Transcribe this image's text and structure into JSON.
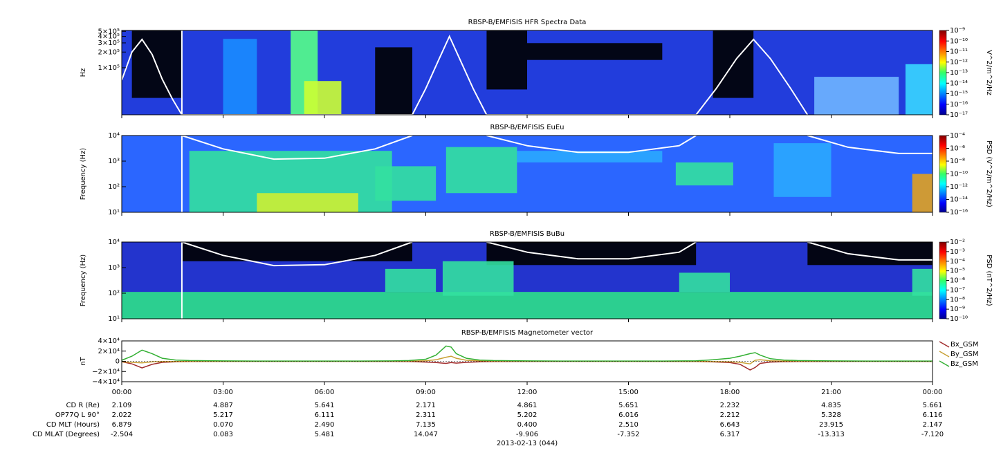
{
  "chart_data": [
    {
      "type": "spectrogram",
      "title": "RBSP-B/EMFISIS  HFR Spectra Data",
      "ylabel": "Hz",
      "ylog": true,
      "ylim": [
        12500,
        520000
      ],
      "yticks": [
        {
          "value": 100000,
          "label": "1×10⁵"
        },
        {
          "value": 200000,
          "label": "2×10⁵"
        },
        {
          "value": 300000,
          "label": "3×10⁵"
        },
        {
          "value": 400000,
          "label": "4×10⁵"
        },
        {
          "value": 500000,
          "label": "5×10⁵"
        }
      ],
      "colorbar": {
        "label": "V^2/m^2/Hz",
        "lim": [
          1e-17,
          1e-09
        ],
        "ticks": [
          {
            "value": 1e-09,
            "label": "10⁻⁹"
          },
          {
            "value": 1e-10,
            "label": "10⁻¹⁰"
          },
          {
            "value": 1e-11,
            "label": "10⁻¹¹"
          },
          {
            "value": 1e-12,
            "label": "10⁻¹²"
          },
          {
            "value": 1e-13,
            "label": "10⁻¹³"
          },
          {
            "value": 1e-14,
            "label": "10⁻¹⁴"
          },
          {
            "value": 1e-15,
            "label": "10⁻¹⁵"
          },
          {
            "value": 1e-16,
            "label": "10⁻¹⁶"
          },
          {
            "value": 1e-17,
            "label": "10⁻¹⁷"
          }
        ]
      },
      "curve": {
        "color": "#ffffff",
        "x": [
          0,
          0.3,
          0.6,
          0.9,
          1.2,
          1.5,
          1.78,
          8.6,
          9,
          9.4,
          9.7,
          10,
          10.4,
          10.8,
          17,
          17.6,
          18.2,
          18.7,
          19.2,
          19.8,
          20.3
        ],
        "values": [
          58000,
          200000,
          350000,
          180000,
          60000,
          25000,
          12500,
          12500,
          40000,
          150000,
          400000,
          150000,
          40000,
          12500,
          12500,
          40000,
          150000,
          350000,
          150000,
          40000,
          12500
        ]
      }
    },
    {
      "type": "spectrogram",
      "title": "RBSP-B/EMFISIS  EuEu",
      "ylabel": "Frequency (Hz)",
      "ylog": true,
      "ylim": [
        10,
        10000
      ],
      "yticks": [
        {
          "value": 10,
          "label": "10¹"
        },
        {
          "value": 100,
          "label": "10²"
        },
        {
          "value": 1000,
          "label": "10³"
        },
        {
          "value": 10000,
          "label": "10⁴"
        }
      ],
      "colorbar": {
        "label": "PSD (V^2/m^2/Hz)",
        "lim": [
          1e-16,
          0.0001
        ],
        "ticks": [
          {
            "value": 0.0001,
            "label": "10⁻⁴"
          },
          {
            "value": 1e-06,
            "label": "10⁻⁶"
          },
          {
            "value": 1e-08,
            "label": "10⁻⁸"
          },
          {
            "value": 1e-10,
            "label": "10⁻¹⁰"
          },
          {
            "value": 1e-12,
            "label": "10⁻¹²"
          },
          {
            "value": 1e-14,
            "label": "10⁻¹⁴"
          },
          {
            "value": 1e-16,
            "label": "10⁻¹⁶"
          }
        ]
      },
      "curve": {
        "color": "#ffffff",
        "x": [
          1.78,
          3,
          4.5,
          6,
          7.5,
          8.6,
          null,
          10.8,
          12,
          13.5,
          15,
          16.5,
          17,
          null,
          20.3,
          21.5,
          23,
          24
        ],
        "values": [
          10000,
          3000,
          1200,
          1300,
          3000,
          10000,
          null,
          10000,
          4000,
          2200,
          2200,
          4000,
          10000,
          null,
          10000,
          3500,
          2000,
          2000
        ]
      }
    },
    {
      "type": "spectrogram",
      "title": "RBSP-B/EMFISIS  BuBu",
      "ylabel": "Frequency (Hz)",
      "ylog": true,
      "ylim": [
        10,
        10000
      ],
      "yticks": [
        {
          "value": 10,
          "label": "10¹"
        },
        {
          "value": 100,
          "label": "10²"
        },
        {
          "value": 1000,
          "label": "10³"
        },
        {
          "value": 10000,
          "label": "10⁴"
        }
      ],
      "colorbar": {
        "label": "PSD (nT^2/Hz)",
        "lim": [
          1e-10,
          0.01
        ],
        "ticks": [
          {
            "value": 0.01,
            "label": "10⁻²"
          },
          {
            "value": 0.001,
            "label": "10⁻³"
          },
          {
            "value": 0.0001,
            "label": "10⁻⁴"
          },
          {
            "value": 1e-05,
            "label": "10⁻⁵"
          },
          {
            "value": 1e-06,
            "label": "10⁻⁶"
          },
          {
            "value": 1e-07,
            "label": "10⁻⁷"
          },
          {
            "value": 1e-08,
            "label": "10⁻⁸"
          },
          {
            "value": 1e-09,
            "label": "10⁻⁹"
          },
          {
            "value": 1e-10,
            "label": "10⁻¹⁰"
          }
        ]
      },
      "curve": {
        "color": "#ffffff",
        "x": [
          1.78,
          3,
          4.5,
          6,
          7.5,
          8.6,
          null,
          10.8,
          12,
          13.5,
          15,
          16.5,
          17,
          null,
          20.3,
          21.5,
          23,
          24
        ],
        "values": [
          10000,
          3000,
          1200,
          1300,
          3000,
          10000,
          null,
          10000,
          4000,
          2200,
          2200,
          4000,
          10000,
          null,
          10000,
          3500,
          2000,
          2000
        ]
      }
    },
    {
      "type": "line",
      "title": "RBSP-B/EMFISIS  Magnetometer vector",
      "ylabel": "nT",
      "ylim": [
        -40000,
        40000
      ],
      "yticks": [
        {
          "value": -40000,
          "label": "−4×10⁴"
        },
        {
          "value": -20000,
          "label": "−2×10⁴"
        },
        0,
        {
          "value": 20000,
          "label": "2×10⁴"
        },
        {
          "value": 40000,
          "label": "4×10⁴"
        }
      ],
      "xlim": [
        0,
        24
      ],
      "xticks": [
        {
          "value": 0,
          "label": "00:00"
        },
        {
          "value": 3,
          "label": "03:00"
        },
        {
          "value": 6,
          "label": "06:00"
        },
        {
          "value": 9,
          "label": "09:00"
        },
        {
          "value": 12,
          "label": "12:00"
        },
        {
          "value": 15,
          "label": "15:00"
        },
        {
          "value": 18,
          "label": "18:00"
        },
        {
          "value": 21,
          "label": "21:00"
        },
        {
          "value": 24,
          "label": "00:00"
        }
      ],
      "x": [
        0,
        0.3,
        0.6,
        0.9,
        1.2,
        1.6,
        2,
        3,
        4,
        5,
        6,
        7,
        8,
        8.5,
        9,
        9.3,
        9.6,
        9.75,
        9.9,
        10.2,
        10.6,
        11,
        12,
        13,
        14,
        15,
        16,
        17,
        17.5,
        18,
        18.3,
        18.6,
        18.75,
        18.9,
        19.2,
        19.6,
        20,
        21,
        22,
        23,
        24
      ],
      "series": [
        {
          "name": "Bx_GSM",
          "color": "#a02a2a",
          "values": [
            -1000,
            -5000,
            -13000,
            -6000,
            -2000,
            -1000,
            -500,
            -300,
            -200,
            -200,
            -200,
            -300,
            -400,
            -600,
            -1500,
            -2500,
            -4000,
            -2500,
            -3500,
            -2000,
            -1000,
            -600,
            -300,
            -200,
            -200,
            -200,
            -300,
            -600,
            -1200,
            -2500,
            -6000,
            -17000,
            -12000,
            -4000,
            -1500,
            -800,
            -500,
            -300,
            -200,
            -200,
            -300
          ]
        },
        {
          "name": "By_GSM",
          "color": "#c8a035",
          "values": [
            -1000,
            -2000,
            -3000,
            -1000,
            -500,
            -300,
            -200,
            -100,
            0,
            0,
            0,
            0,
            100,
            300,
            1000,
            3000,
            8000,
            10000,
            6000,
            2000,
            800,
            400,
            200,
            100,
            0,
            0,
            0,
            -200,
            -500,
            -1000,
            -2000,
            -5000,
            2000,
            3000,
            1000,
            400,
            200,
            100,
            0,
            0,
            0
          ]
        },
        {
          "name": "Bz_GSM",
          "color": "#33b033",
          "values": [
            2000,
            10000,
            22000,
            15000,
            6000,
            2500,
            1500,
            800,
            500,
            500,
            500,
            600,
            800,
            1500,
            4000,
            12000,
            30000,
            28000,
            15000,
            6000,
            2500,
            1500,
            800,
            600,
            500,
            500,
            600,
            1000,
            3000,
            6000,
            10000,
            15000,
            17000,
            12000,
            5000,
            2500,
            1500,
            800,
            500,
            500,
            500
          ]
        }
      ]
    }
  ],
  "ephemeris": {
    "rows": [
      {
        "label": "CD R (Re)",
        "values": [
          "2.109",
          "4.887",
          "5.641",
          "2.171",
          "4.861",
          "5.651",
          "2.232",
          "4.835",
          "5.661"
        ]
      },
      {
        "label": "OP77Q L 90°",
        "values": [
          "2.022",
          "5.217",
          "6.111",
          "2.311",
          "5.202",
          "6.016",
          "2.212",
          "5.328",
          "6.116"
        ]
      },
      {
        "label": "CD MLT (Hours)",
        "values": [
          "6.879",
          "0.070",
          "2.490",
          "7.135",
          "0.400",
          "2.510",
          "6.643",
          "23.915",
          "2.147"
        ]
      },
      {
        "label": "CD MLAT (Degrees)",
        "values": [
          "-2.504",
          "0.083",
          "5.481",
          "14.047",
          "-9.906",
          "-7.352",
          "6.317",
          "-13.313",
          "-7.120"
        ]
      }
    ],
    "date": "2013-02-13 (044)"
  }
}
